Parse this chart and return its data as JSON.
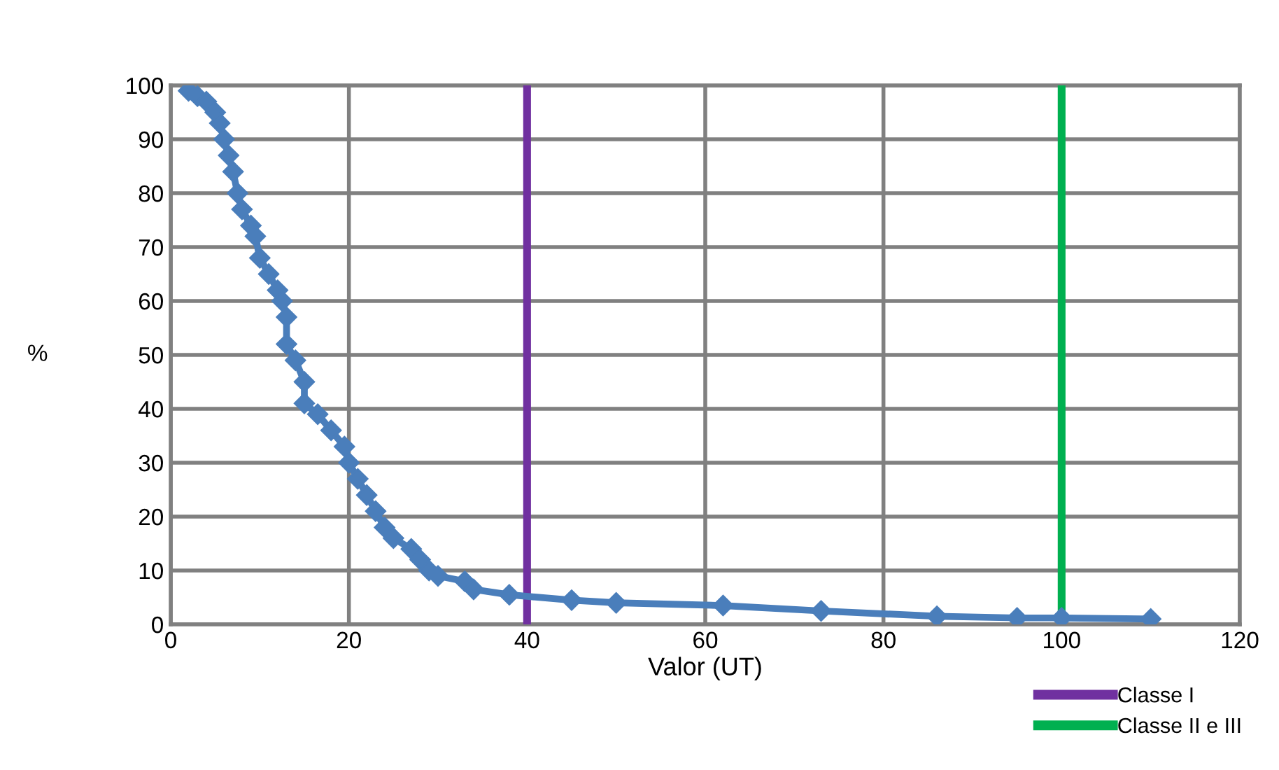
{
  "chart_data": {
    "type": "line",
    "xlabel": "Valor (UT)",
    "ylabel": "%",
    "xlim": [
      0,
      120
    ],
    "xticks": [
      0,
      20,
      40,
      60,
      80,
      100,
      120
    ],
    "ylim": [
      0,
      100
    ],
    "yticks": [
      0,
      10,
      20,
      30,
      40,
      50,
      60,
      70,
      80,
      90,
      100
    ],
    "grid": true,
    "legend": "bottom right",
    "series": [
      {
        "color": "#4a7ebb",
        "marker": "diamond",
        "x": [
          2,
          3,
          4,
          5,
          5.5,
          6,
          6.5,
          7,
          7.5,
          8,
          9,
          9.5,
          10,
          11,
          12,
          12.5,
          13,
          13,
          14,
          15,
          15,
          16.5,
          18,
          19.5,
          20,
          21,
          22,
          23,
          24,
          25,
          27,
          28,
          29,
          30,
          33,
          34,
          38,
          45,
          50,
          62,
          73,
          86,
          95,
          100,
          110
        ],
        "values": [
          99,
          98,
          97,
          95,
          93,
          90,
          87,
          84,
          80,
          77,
          74,
          72,
          68,
          65,
          62,
          60,
          57,
          52,
          49,
          45,
          41,
          39,
          36,
          33,
          30,
          27,
          24,
          21,
          18,
          16,
          14,
          12,
          10,
          9,
          8,
          6.5,
          5.5,
          4.5,
          4,
          3.5,
          2.5,
          1.5,
          1.2,
          1.2,
          1
        ]
      },
      {
        "name": "Classe I",
        "color": "#7030a0",
        "marker": "none",
        "x": [
          40,
          40
        ],
        "values": [
          0,
          100
        ]
      },
      {
        "name": "Classe II e III",
        "color": "#00b050",
        "marker": "none",
        "x": [
          100,
          100
        ],
        "values": [
          0,
          100
        ]
      }
    ]
  }
}
